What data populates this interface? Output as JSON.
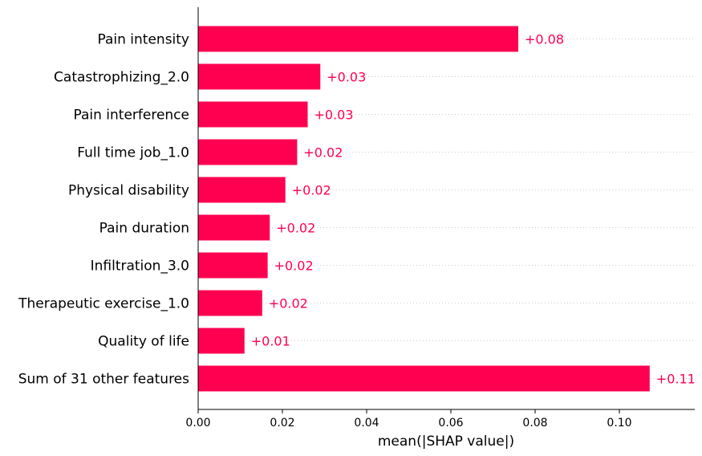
{
  "chart_data": {
    "type": "bar",
    "orientation": "horizontal",
    "title": "",
    "xlabel": "mean(|SHAP value|)",
    "ylabel": "",
    "xlim": [
      0,
      0.118
    ],
    "xticks": [
      "0.00",
      "0.02",
      "0.04",
      "0.06",
      "0.08",
      "0.10"
    ],
    "grid": false,
    "bar_color": "#ff0051",
    "bars": [
      {
        "label": "Pain intensity",
        "value": 0.076,
        "text": "+0.08"
      },
      {
        "label": "Catastrophizing_2.0",
        "value": 0.029,
        "text": "+0.03"
      },
      {
        "label": "Pain interference",
        "value": 0.026,
        "text": "+0.03"
      },
      {
        "label": "Full time job_1.0",
        "value": 0.0235,
        "text": "+0.02"
      },
      {
        "label": "Physical disability",
        "value": 0.0207,
        "text": "+0.02"
      },
      {
        "label": "Pain duration",
        "value": 0.017,
        "text": "+0.02"
      },
      {
        "label": "Infiltration_3.0",
        "value": 0.0165,
        "text": "+0.02"
      },
      {
        "label": "Therapeutic exercise_1.0",
        "value": 0.0152,
        "text": "+0.02"
      },
      {
        "label": "Quality of life",
        "value": 0.011,
        "text": "+0.01"
      },
      {
        "label": "Sum of 31 other features",
        "value": 0.1072,
        "text": "+0.11"
      }
    ]
  }
}
